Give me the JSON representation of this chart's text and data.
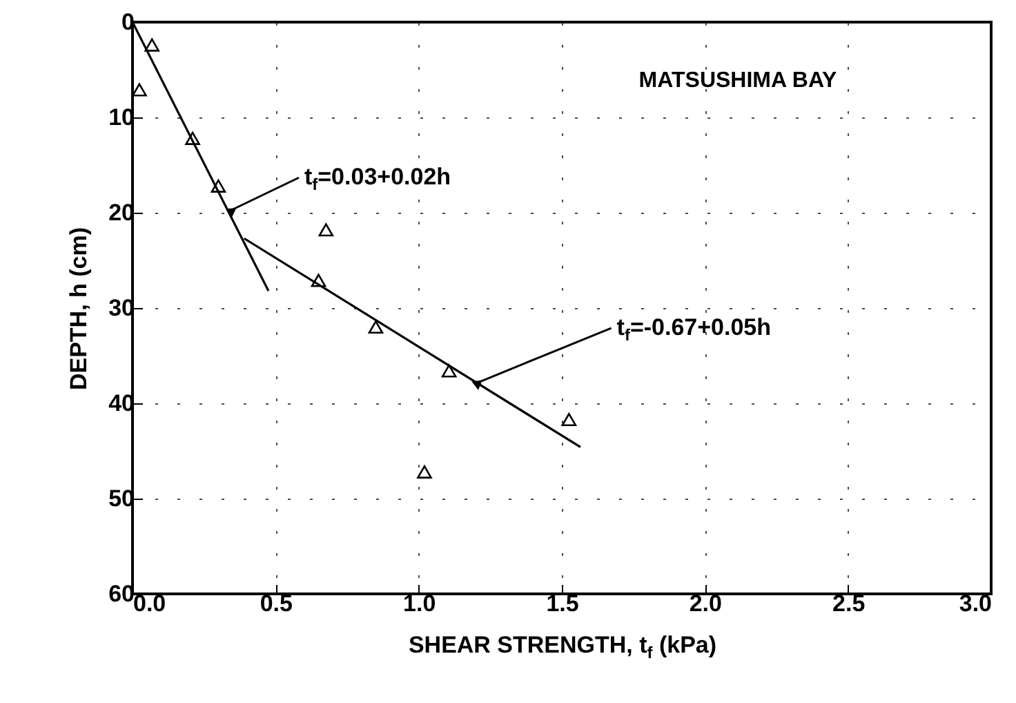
{
  "chart_data": {
    "type": "scatter",
    "annotations": [
      {
        "text": "t$_{f}$=0.03+0.02h",
        "x": 0.34,
        "y": 19.8
      },
      {
        "text": "t$_{f}$=-0.67+0.05h",
        "x": 1.2,
        "y": 37.9
      },
      "MATSUSHIMA BAY"
    ],
    "xlabel": "SHEAR STRENGTH, t$_{f}$ (kPa)",
    "ylabel": "DEPTH, h (cm)",
    "series": [
      {
        "color": "#000000",
        "marker": "triangle",
        "x": [
          0.068,
          0.024,
          0.21,
          0.3,
          0.676,
          0.65,
          0.85,
          1.106,
          1.02,
          1.525
        ],
        "values": [
          2.4,
          7.1,
          12.2,
          17.2,
          21.8,
          27.1,
          32.0,
          36.6,
          47.2,
          41.7
        ]
      },
      {
        "type": "line",
        "color": "#000000",
        "x": [
          0,
          0.475
        ],
        "values": [
          0,
          28.2
        ]
      },
      {
        "type": "line",
        "color": "#000000",
        "x": [
          0.39,
          1.565
        ],
        "values": [
          22.7,
          44.6
        ]
      }
    ],
    "xlim": [
      0,
      3
    ],
    "ylim": [
      60,
      0
    ],
    "xticks": [
      {
        "value": 0,
        "label": "0.0"
      },
      {
        "value": 0.5,
        "label": "0.5"
      },
      {
        "value": 1,
        "label": "1.0"
      },
      {
        "value": 1.5,
        "label": "1.5"
      },
      {
        "value": 2,
        "label": "2.0"
      },
      {
        "value": 2.5,
        "label": "2.5"
      },
      {
        "value": 3,
        "label": "3.0"
      }
    ],
    "yticks": [
      0,
      10,
      20,
      30,
      40,
      50,
      60
    ],
    "grid": true
  }
}
